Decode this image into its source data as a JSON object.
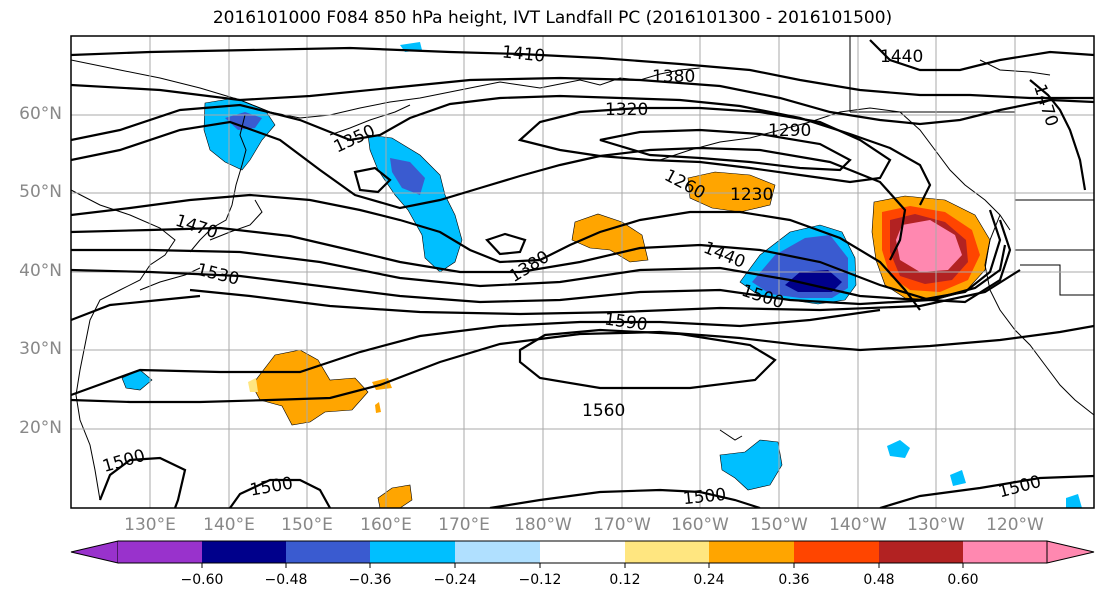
{
  "title": "2016101000 F084 850 hPa height, IVT Landfall PC (2016101300 - 2016101500)",
  "map": {
    "lat_labels": [
      "60°N",
      "50°N",
      "40°N",
      "30°N",
      "20°N"
    ],
    "lon_labels": [
      "130°E",
      "140°E",
      "150°E",
      "160°E",
      "170°E",
      "180°W",
      "170°W",
      "160°W",
      "150°W",
      "140°W",
      "130°W",
      "120°W"
    ],
    "contour_labels": [
      "1410",
      "1380",
      "1440",
      "1320",
      "1350",
      "1290",
      "1260",
      "1230",
      "1470",
      "1380",
      "1440",
      "1530",
      "1500",
      "1590",
      "1560",
      "1500",
      "1500",
      "1500",
      "1500",
      "1470"
    ],
    "colors": {
      "neg_060": "#9932cc",
      "neg_048": "#00008b",
      "neg_036": "#3a5bd0",
      "neg_024": "#00bfff",
      "neg_012": "#b0e0ff",
      "neutral": "#ffffff",
      "pos_012": "#ffe680",
      "pos_024": "#ffa500",
      "pos_036": "#ff4500",
      "pos_048": "#b22222",
      "pos_060": "#ff88b0"
    }
  },
  "colorbar": {
    "ticks": [
      "−0.60",
      "−0.48",
      "−0.36",
      "−0.24",
      "−0.12",
      "0.12",
      "0.24",
      "0.36",
      "0.48",
      "0.60"
    ]
  }
}
